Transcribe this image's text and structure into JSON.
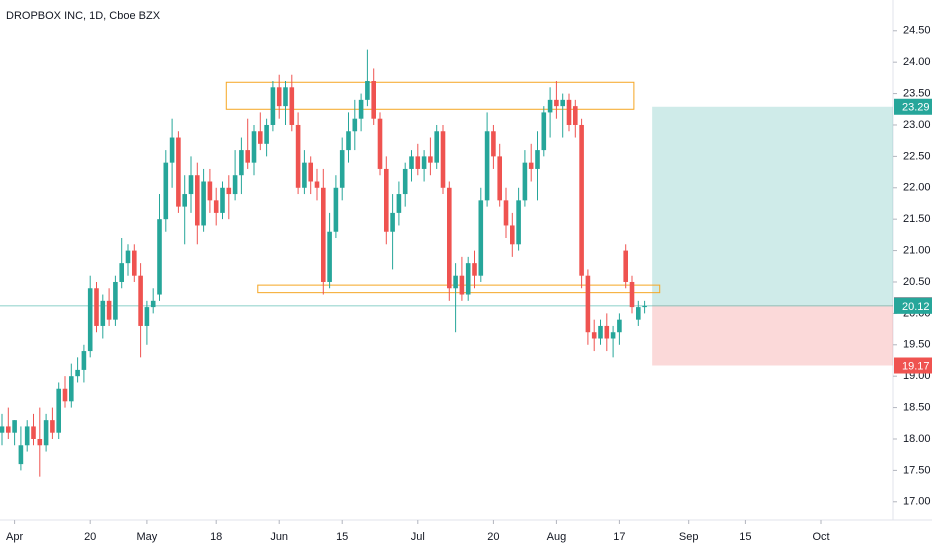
{
  "chart_data": {
    "type": "candlestick",
    "title": "DROPBOX INC, 1D, Cboe BZX",
    "up_color": "#26a69a",
    "down_color": "#ef5350",
    "ohlc": [
      [
        18.1,
        18.4,
        17.9,
        18.2
      ],
      [
        18.2,
        18.5,
        18.0,
        18.1
      ],
      [
        18.1,
        18.3,
        17.9,
        18.3
      ],
      [
        17.6,
        18.2,
        17.5,
        17.9
      ],
      [
        17.9,
        18.3,
        17.8,
        18.2
      ],
      [
        18.2,
        18.4,
        17.9,
        18.0
      ],
      [
        18.0,
        18.5,
        17.4,
        17.9
      ],
      [
        17.9,
        18.4,
        17.8,
        18.3
      ],
      [
        18.3,
        18.5,
        18.0,
        18.1
      ],
      [
        18.1,
        18.9,
        18.0,
        18.8
      ],
      [
        18.8,
        19.0,
        18.5,
        18.6
      ],
      [
        18.6,
        19.2,
        18.5,
        19.0
      ],
      [
        19.0,
        19.3,
        18.9,
        19.1
      ],
      [
        19.1,
        19.5,
        18.9,
        19.4
      ],
      [
        19.4,
        20.6,
        19.3,
        20.4
      ],
      [
        20.4,
        20.5,
        19.7,
        19.8
      ],
      [
        19.8,
        20.3,
        19.6,
        20.2
      ],
      [
        20.2,
        20.4,
        19.8,
        19.9
      ],
      [
        19.9,
        20.6,
        19.8,
        20.5
      ],
      [
        20.5,
        21.2,
        20.4,
        20.8
      ],
      [
        20.8,
        21.1,
        20.6,
        21.0
      ],
      [
        21.0,
        21.1,
        20.5,
        20.6
      ],
      [
        20.6,
        20.8,
        19.3,
        19.8
      ],
      [
        19.8,
        20.2,
        19.5,
        20.1
      ],
      [
        20.1,
        20.4,
        20.0,
        20.2
      ],
      [
        20.3,
        21.9,
        20.2,
        21.5
      ],
      [
        21.5,
        22.6,
        21.3,
        22.4
      ],
      [
        22.4,
        23.1,
        22.0,
        22.8
      ],
      [
        22.8,
        22.9,
        21.6,
        21.7
      ],
      [
        21.7,
        22.2,
        21.1,
        21.9
      ],
      [
        21.9,
        22.5,
        21.6,
        22.2
      ],
      [
        22.2,
        22.4,
        21.1,
        21.4
      ],
      [
        21.4,
        22.3,
        21.3,
        22.1
      ],
      [
        22.1,
        22.3,
        21.6,
        21.8
      ],
      [
        21.8,
        22.0,
        21.4,
        21.6
      ],
      [
        21.6,
        22.1,
        21.5,
        22.0
      ],
      [
        22.0,
        22.2,
        21.5,
        21.9
      ],
      [
        21.9,
        22.6,
        21.8,
        22.2
      ],
      [
        22.2,
        22.8,
        21.9,
        22.6
      ],
      [
        22.6,
        23.1,
        22.3,
        22.4
      ],
      [
        22.4,
        23.0,
        22.2,
        22.9
      ],
      [
        22.9,
        23.2,
        22.6,
        22.7
      ],
      [
        22.7,
        23.1,
        22.5,
        23.0
      ],
      [
        23.0,
        23.7,
        22.9,
        23.6
      ],
      [
        23.6,
        23.8,
        23.1,
        23.3
      ],
      [
        23.3,
        23.7,
        23.0,
        23.6
      ],
      [
        23.6,
        23.8,
        22.9,
        23.0
      ],
      [
        23.0,
        23.2,
        21.9,
        22.0
      ],
      [
        22.0,
        22.6,
        21.9,
        22.4
      ],
      [
        22.4,
        22.5,
        21.9,
        22.1
      ],
      [
        22.1,
        22.3,
        21.8,
        22.0
      ],
      [
        22.0,
        22.3,
        20.3,
        20.5
      ],
      [
        20.5,
        21.6,
        20.4,
        21.3
      ],
      [
        21.3,
        22.2,
        21.2,
        22.0
      ],
      [
        22.0,
        22.8,
        21.8,
        22.6
      ],
      [
        22.6,
        23.2,
        22.4,
        22.9
      ],
      [
        22.9,
        23.4,
        22.6,
        23.1
      ],
      [
        23.1,
        23.5,
        22.9,
        23.4
      ],
      [
        23.4,
        24.2,
        23.3,
        23.7
      ],
      [
        23.7,
        23.9,
        23.0,
        23.1
      ],
      [
        23.1,
        23.2,
        22.2,
        22.3
      ],
      [
        22.3,
        22.5,
        21.1,
        21.3
      ],
      [
        21.3,
        21.9,
        20.7,
        21.6
      ],
      [
        21.6,
        22.1,
        21.4,
        21.9
      ],
      [
        21.9,
        22.4,
        21.7,
        22.3
      ],
      [
        22.3,
        22.6,
        22.1,
        22.5
      ],
      [
        22.5,
        22.7,
        22.2,
        22.3
      ],
      [
        22.3,
        22.6,
        22.1,
        22.5
      ],
      [
        22.5,
        22.8,
        22.2,
        22.4
      ],
      [
        22.4,
        23.0,
        22.3,
        22.9
      ],
      [
        22.9,
        23.0,
        21.9,
        22.0
      ],
      [
        22.0,
        22.1,
        20.2,
        20.4
      ],
      [
        20.4,
        20.8,
        19.7,
        20.6
      ],
      [
        20.6,
        20.9,
        20.2,
        20.3
      ],
      [
        20.3,
        20.9,
        20.2,
        20.8
      ],
      [
        20.8,
        21.0,
        20.4,
        20.6
      ],
      [
        20.6,
        22.0,
        20.5,
        21.8
      ],
      [
        21.8,
        23.2,
        21.7,
        22.9
      ],
      [
        22.9,
        23.0,
        22.3,
        22.5
      ],
      [
        22.5,
        22.7,
        21.7,
        21.8
      ],
      [
        21.8,
        22.0,
        21.2,
        21.4
      ],
      [
        21.4,
        21.6,
        20.9,
        21.1
      ],
      [
        21.1,
        22.0,
        21.0,
        21.8
      ],
      [
        21.8,
        22.6,
        21.7,
        22.4
      ],
      [
        22.4,
        22.7,
        22.1,
        22.3
      ],
      [
        22.3,
        22.9,
        21.8,
        22.6
      ],
      [
        22.6,
        23.3,
        22.5,
        23.2
      ],
      [
        23.2,
        23.6,
        22.8,
        23.4
      ],
      [
        23.4,
        23.7,
        23.1,
        23.3
      ],
      [
        23.3,
        23.5,
        22.8,
        23.4
      ],
      [
        23.4,
        23.5,
        22.9,
        23.0
      ],
      [
        23.3,
        23.4,
        22.8,
        23.0
      ],
      [
        23.0,
        23.1,
        20.4,
        20.6
      ],
      [
        20.6,
        20.7,
        19.5,
        19.7
      ],
      [
        19.7,
        19.9,
        19.4,
        19.6
      ],
      [
        19.6,
        19.9,
        19.5,
        19.8
      ],
      [
        19.8,
        20.0,
        19.4,
        19.6
      ],
      [
        19.6,
        19.8,
        19.3,
        19.7
      ],
      [
        19.7,
        20.0,
        19.5,
        19.9
      ],
      [
        21.0,
        21.1,
        20.4,
        20.5
      ],
      [
        20.5,
        20.6,
        20.0,
        20.1
      ],
      [
        19.9,
        20.2,
        19.8,
        20.1
      ],
      [
        20.1,
        20.2,
        20.0,
        20.12
      ]
    ],
    "ylim": [
      16.71,
      24.99
    ],
    "yticks": [
      {
        "value": 17,
        "label": "17.00"
      },
      {
        "value": 17.5,
        "label": "17.50"
      },
      {
        "value": 18,
        "label": "18.00"
      },
      {
        "value": 18.5,
        "label": "18.50"
      },
      {
        "value": 19,
        "label": "19.00"
      },
      {
        "value": 19.5,
        "label": "19.50"
      },
      {
        "value": 20,
        "label": "20.00"
      },
      {
        "value": 20.5,
        "label": "20.50"
      },
      {
        "value": 21,
        "label": "21.00"
      },
      {
        "value": 21.5,
        "label": "21.50"
      },
      {
        "value": 22,
        "label": "22.00"
      },
      {
        "value": 22.5,
        "label": "22.50"
      },
      {
        "value": 23,
        "label": "23.00"
      },
      {
        "value": 23.5,
        "label": "23.50"
      },
      {
        "value": 24,
        "label": "24.00"
      },
      {
        "value": 24.5,
        "label": "24.50"
      }
    ],
    "xticks": [
      {
        "value": 2,
        "label": "Apr"
      },
      {
        "value": 14,
        "label": "20"
      },
      {
        "value": 23,
        "label": "May"
      },
      {
        "value": 34,
        "label": "18"
      },
      {
        "value": 44,
        "label": "Jun"
      },
      {
        "value": 54,
        "label": "15"
      },
      {
        "value": 66,
        "label": "Jul"
      },
      {
        "value": 78,
        "label": "20"
      },
      {
        "value": 88,
        "label": "Aug"
      },
      {
        "value": 98,
        "label": "17"
      },
      {
        "value": 109,
        "label": "Sep"
      },
      {
        "value": 118,
        "label": "15"
      },
      {
        "value": 130,
        "label": "Oct"
      }
    ],
    "zones": [
      {
        "top": 23.68,
        "bottom": 23.25,
        "start": 35.6,
        "end": 100.3
      },
      {
        "top": 20.45,
        "bottom": 20.33,
        "start": 40.6,
        "end": 104.4
      }
    ],
    "position": {
      "start": 103.2,
      "target": 23.29,
      "entry": 20.13,
      "stop": 19.17
    },
    "last_price": 20.12
  }
}
